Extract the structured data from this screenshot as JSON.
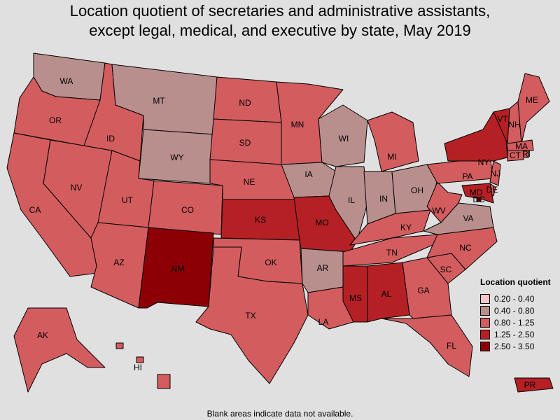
{
  "title": {
    "line1": "Location quotient of secretaries and administrative assistants,",
    "line2": "except legal, medical, and executive by state, May 2019"
  },
  "legend": {
    "title": "Location quotient",
    "bins": [
      {
        "label": "0.20 - 0.40",
        "color": "#f7c4c8"
      },
      {
        "label": "0.40 - 0.80",
        "color": "#b98f8e"
      },
      {
        "label": "0.80 - 1.25",
        "color": "#d35c5e"
      },
      {
        "label": "1.25 - 2.50",
        "color": "#b52024"
      },
      {
        "label": "2.50 - 3.50",
        "color": "#8c0005"
      }
    ]
  },
  "footnote": "Blank areas indicate data not available.",
  "states": [
    {
      "abbr": "WA",
      "bin": 1
    },
    {
      "abbr": "OR",
      "bin": 2
    },
    {
      "abbr": "CA",
      "bin": 2
    },
    {
      "abbr": "NV",
      "bin": 2
    },
    {
      "abbr": "ID",
      "bin": 2
    },
    {
      "abbr": "MT",
      "bin": 1
    },
    {
      "abbr": "WY",
      "bin": 1
    },
    {
      "abbr": "UT",
      "bin": 2
    },
    {
      "abbr": "AZ",
      "bin": 2
    },
    {
      "abbr": "CO",
      "bin": 2
    },
    {
      "abbr": "NM",
      "bin": 4
    },
    {
      "abbr": "ND",
      "bin": 2
    },
    {
      "abbr": "SD",
      "bin": 2
    },
    {
      "abbr": "NE",
      "bin": 2
    },
    {
      "abbr": "KS",
      "bin": 3
    },
    {
      "abbr": "OK",
      "bin": 2
    },
    {
      "abbr": "TX",
      "bin": 2
    },
    {
      "abbr": "MN",
      "bin": 2
    },
    {
      "abbr": "IA",
      "bin": 1
    },
    {
      "abbr": "MO",
      "bin": 3
    },
    {
      "abbr": "AR",
      "bin": 1
    },
    {
      "abbr": "LA",
      "bin": 2
    },
    {
      "abbr": "WI",
      "bin": 1
    },
    {
      "abbr": "IL",
      "bin": 1
    },
    {
      "abbr": "MI",
      "bin": 2
    },
    {
      "abbr": "IN",
      "bin": 1
    },
    {
      "abbr": "OH",
      "bin": 1
    },
    {
      "abbr": "KY",
      "bin": 2
    },
    {
      "abbr": "TN",
      "bin": 2
    },
    {
      "abbr": "MS",
      "bin": 3
    },
    {
      "abbr": "AL",
      "bin": 3
    },
    {
      "abbr": "GA",
      "bin": 2
    },
    {
      "abbr": "FL",
      "bin": 2
    },
    {
      "abbr": "SC",
      "bin": 2
    },
    {
      "abbr": "NC",
      "bin": 2
    },
    {
      "abbr": "VA",
      "bin": 1
    },
    {
      "abbr": "WV",
      "bin": 2
    },
    {
      "abbr": "PA",
      "bin": 2
    },
    {
      "abbr": "NY",
      "bin": 3
    },
    {
      "abbr": "VT",
      "bin": 3
    },
    {
      "abbr": "NH",
      "bin": 2
    },
    {
      "abbr": "ME",
      "bin": 2
    },
    {
      "abbr": "MA",
      "bin": 2
    },
    {
      "abbr": "RI",
      "bin": 2
    },
    {
      "abbr": "CT",
      "bin": 2
    },
    {
      "abbr": "NJ",
      "bin": 2
    },
    {
      "abbr": "DE",
      "bin": 2
    },
    {
      "abbr": "MD",
      "bin": 3
    },
    {
      "abbr": "DC",
      "bin": 4
    },
    {
      "abbr": "AK",
      "bin": 2
    },
    {
      "abbr": "HI",
      "bin": 2
    },
    {
      "abbr": "PR",
      "bin": 3
    }
  ]
}
